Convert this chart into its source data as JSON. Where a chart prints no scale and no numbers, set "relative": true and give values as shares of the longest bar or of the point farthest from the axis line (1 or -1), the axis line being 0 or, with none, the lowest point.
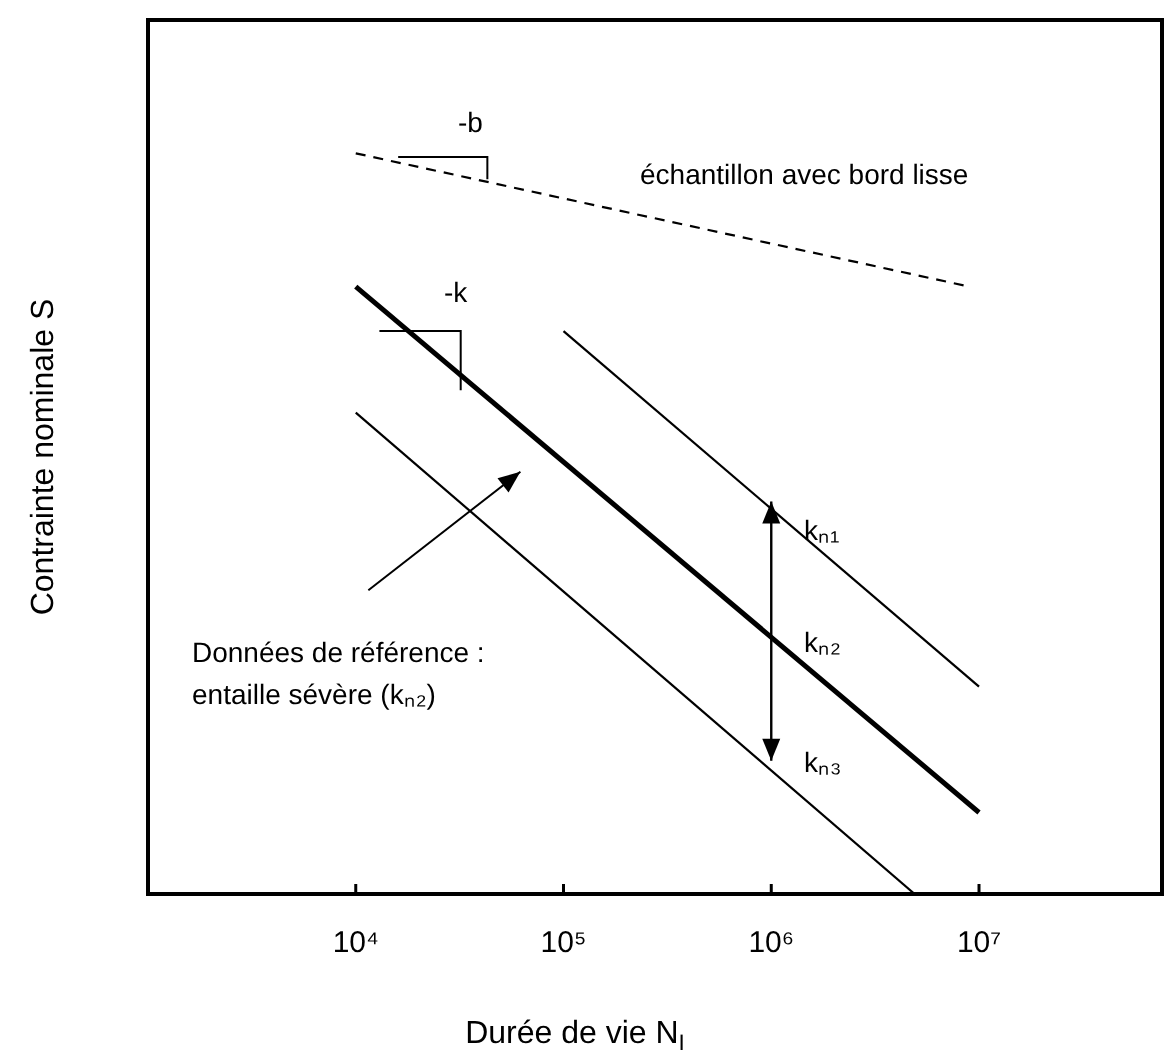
{
  "chart_data": {
    "type": "line",
    "relative": true,
    "log": "x",
    "xlabel": "Durée de vie N$_{I}$",
    "ylabel": "Contrainte nominale S",
    "xlim": [
      1000,
      76000000
    ],
    "xticks": [
      {
        "value": 10000,
        "label": "10⁴"
      },
      {
        "value": 100000,
        "label": "10⁵"
      },
      {
        "value": 1000000,
        "label": "10⁶"
      },
      {
        "value": 10000000,
        "label": "10⁷"
      }
    ],
    "marker": "none",
    "legend": false,
    "grid": false,
    "series": [
      {
        "color": "#000000",
        "line_style": "dashed",
        "x": [
          10000,
          9000000
        ],
        "values": [
          1,
          0.82
        ]
      },
      {
        "color": "#000000",
        "line_style": "solid",
        "x": [
          10000,
          10000000
        ],
        "values": [
          0.82,
          0.11
        ]
      },
      {
        "color": "#000000",
        "line_style": "solid",
        "x": [
          100000,
          10000000
        ],
        "values": [
          0.76,
          0.28
        ]
      },
      {
        "color": "#000000",
        "line_style": "solid",
        "x": [
          10000,
          4900000
        ],
        "values": [
          0.65,
          0
        ]
      }
    ],
    "annotations": [
      "-b",
      "-k",
      "échantillon avec bord lisse",
      "kₙ₁",
      "kₙ₂",
      "kₙ₃",
      "Données de référence :\nentaille sévère (kₙ₂)"
    ]
  }
}
